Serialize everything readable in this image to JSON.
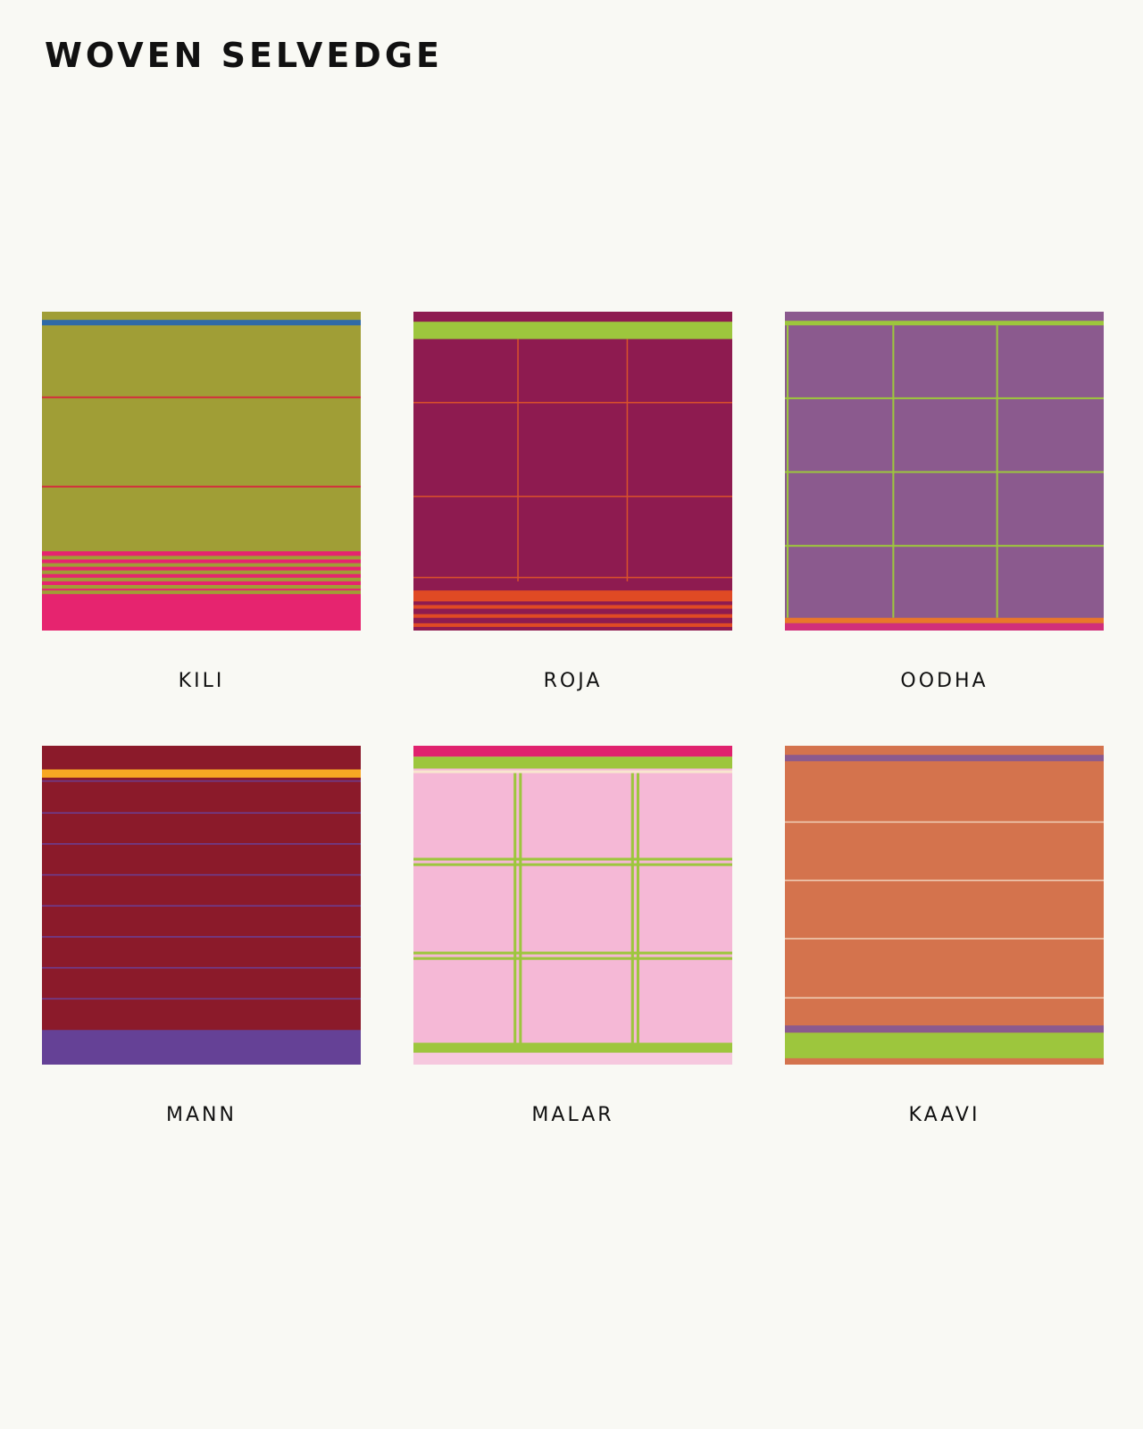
{
  "header": {
    "title": "WOVEN SELVEDGE"
  },
  "swatches": [
    {
      "name": "KILI"
    },
    {
      "name": "ROJA"
    },
    {
      "name": "OODHA"
    },
    {
      "name": "MANN"
    },
    {
      "name": "MALAR"
    },
    {
      "name": "KAAVI"
    }
  ]
}
